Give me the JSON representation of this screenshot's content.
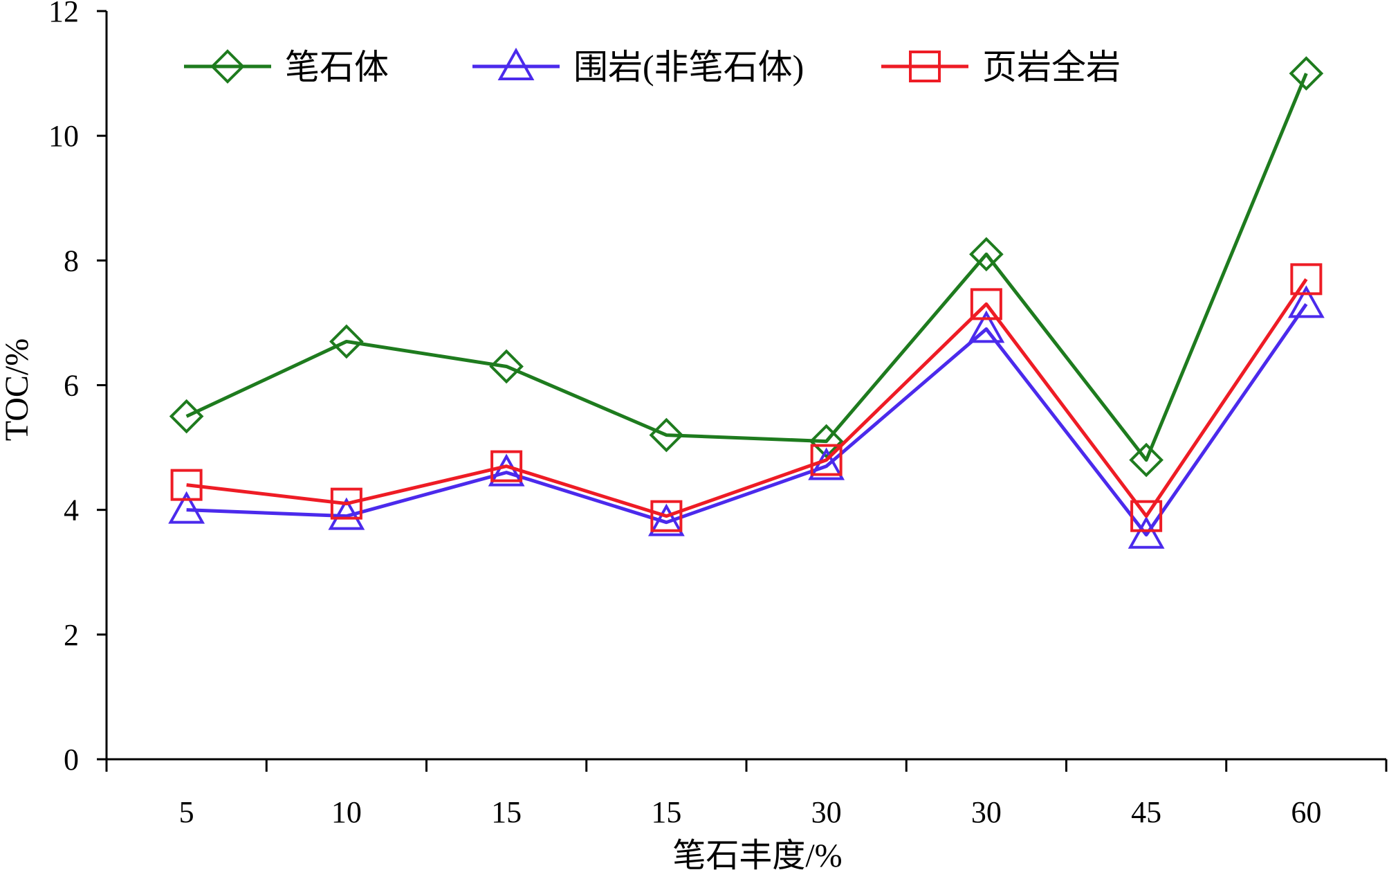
{
  "chart_data": {
    "type": "line",
    "categories": [
      "5",
      "10",
      "15",
      "15",
      "30",
      "30",
      "45",
      "60"
    ],
    "series": [
      {
        "name": "笔石体",
        "values": [
          5.5,
          6.7,
          6.3,
          5.2,
          5.1,
          8.1,
          4.8,
          11.0
        ],
        "color": "#1e7b1e",
        "marker": "diamond"
      },
      {
        "name": "围岩(非笔石体)",
        "values": [
          4.0,
          3.9,
          4.6,
          3.8,
          4.7,
          6.9,
          3.6,
          7.3
        ],
        "color": "#4b2aec",
        "marker": "triangle"
      },
      {
        "name": "页岩全岩",
        "values": [
          4.4,
          4.1,
          4.7,
          3.9,
          4.8,
          7.3,
          3.9,
          7.7
        ],
        "color": "#ee1c25",
        "marker": "square"
      }
    ],
    "xlabel": "笔石丰度/%",
    "ylabel": "TOC/%",
    "ylim": [
      0,
      12
    ],
    "yticks": [
      0,
      2,
      4,
      6,
      8,
      10,
      12
    ],
    "grid": false,
    "legend_position": "top"
  }
}
